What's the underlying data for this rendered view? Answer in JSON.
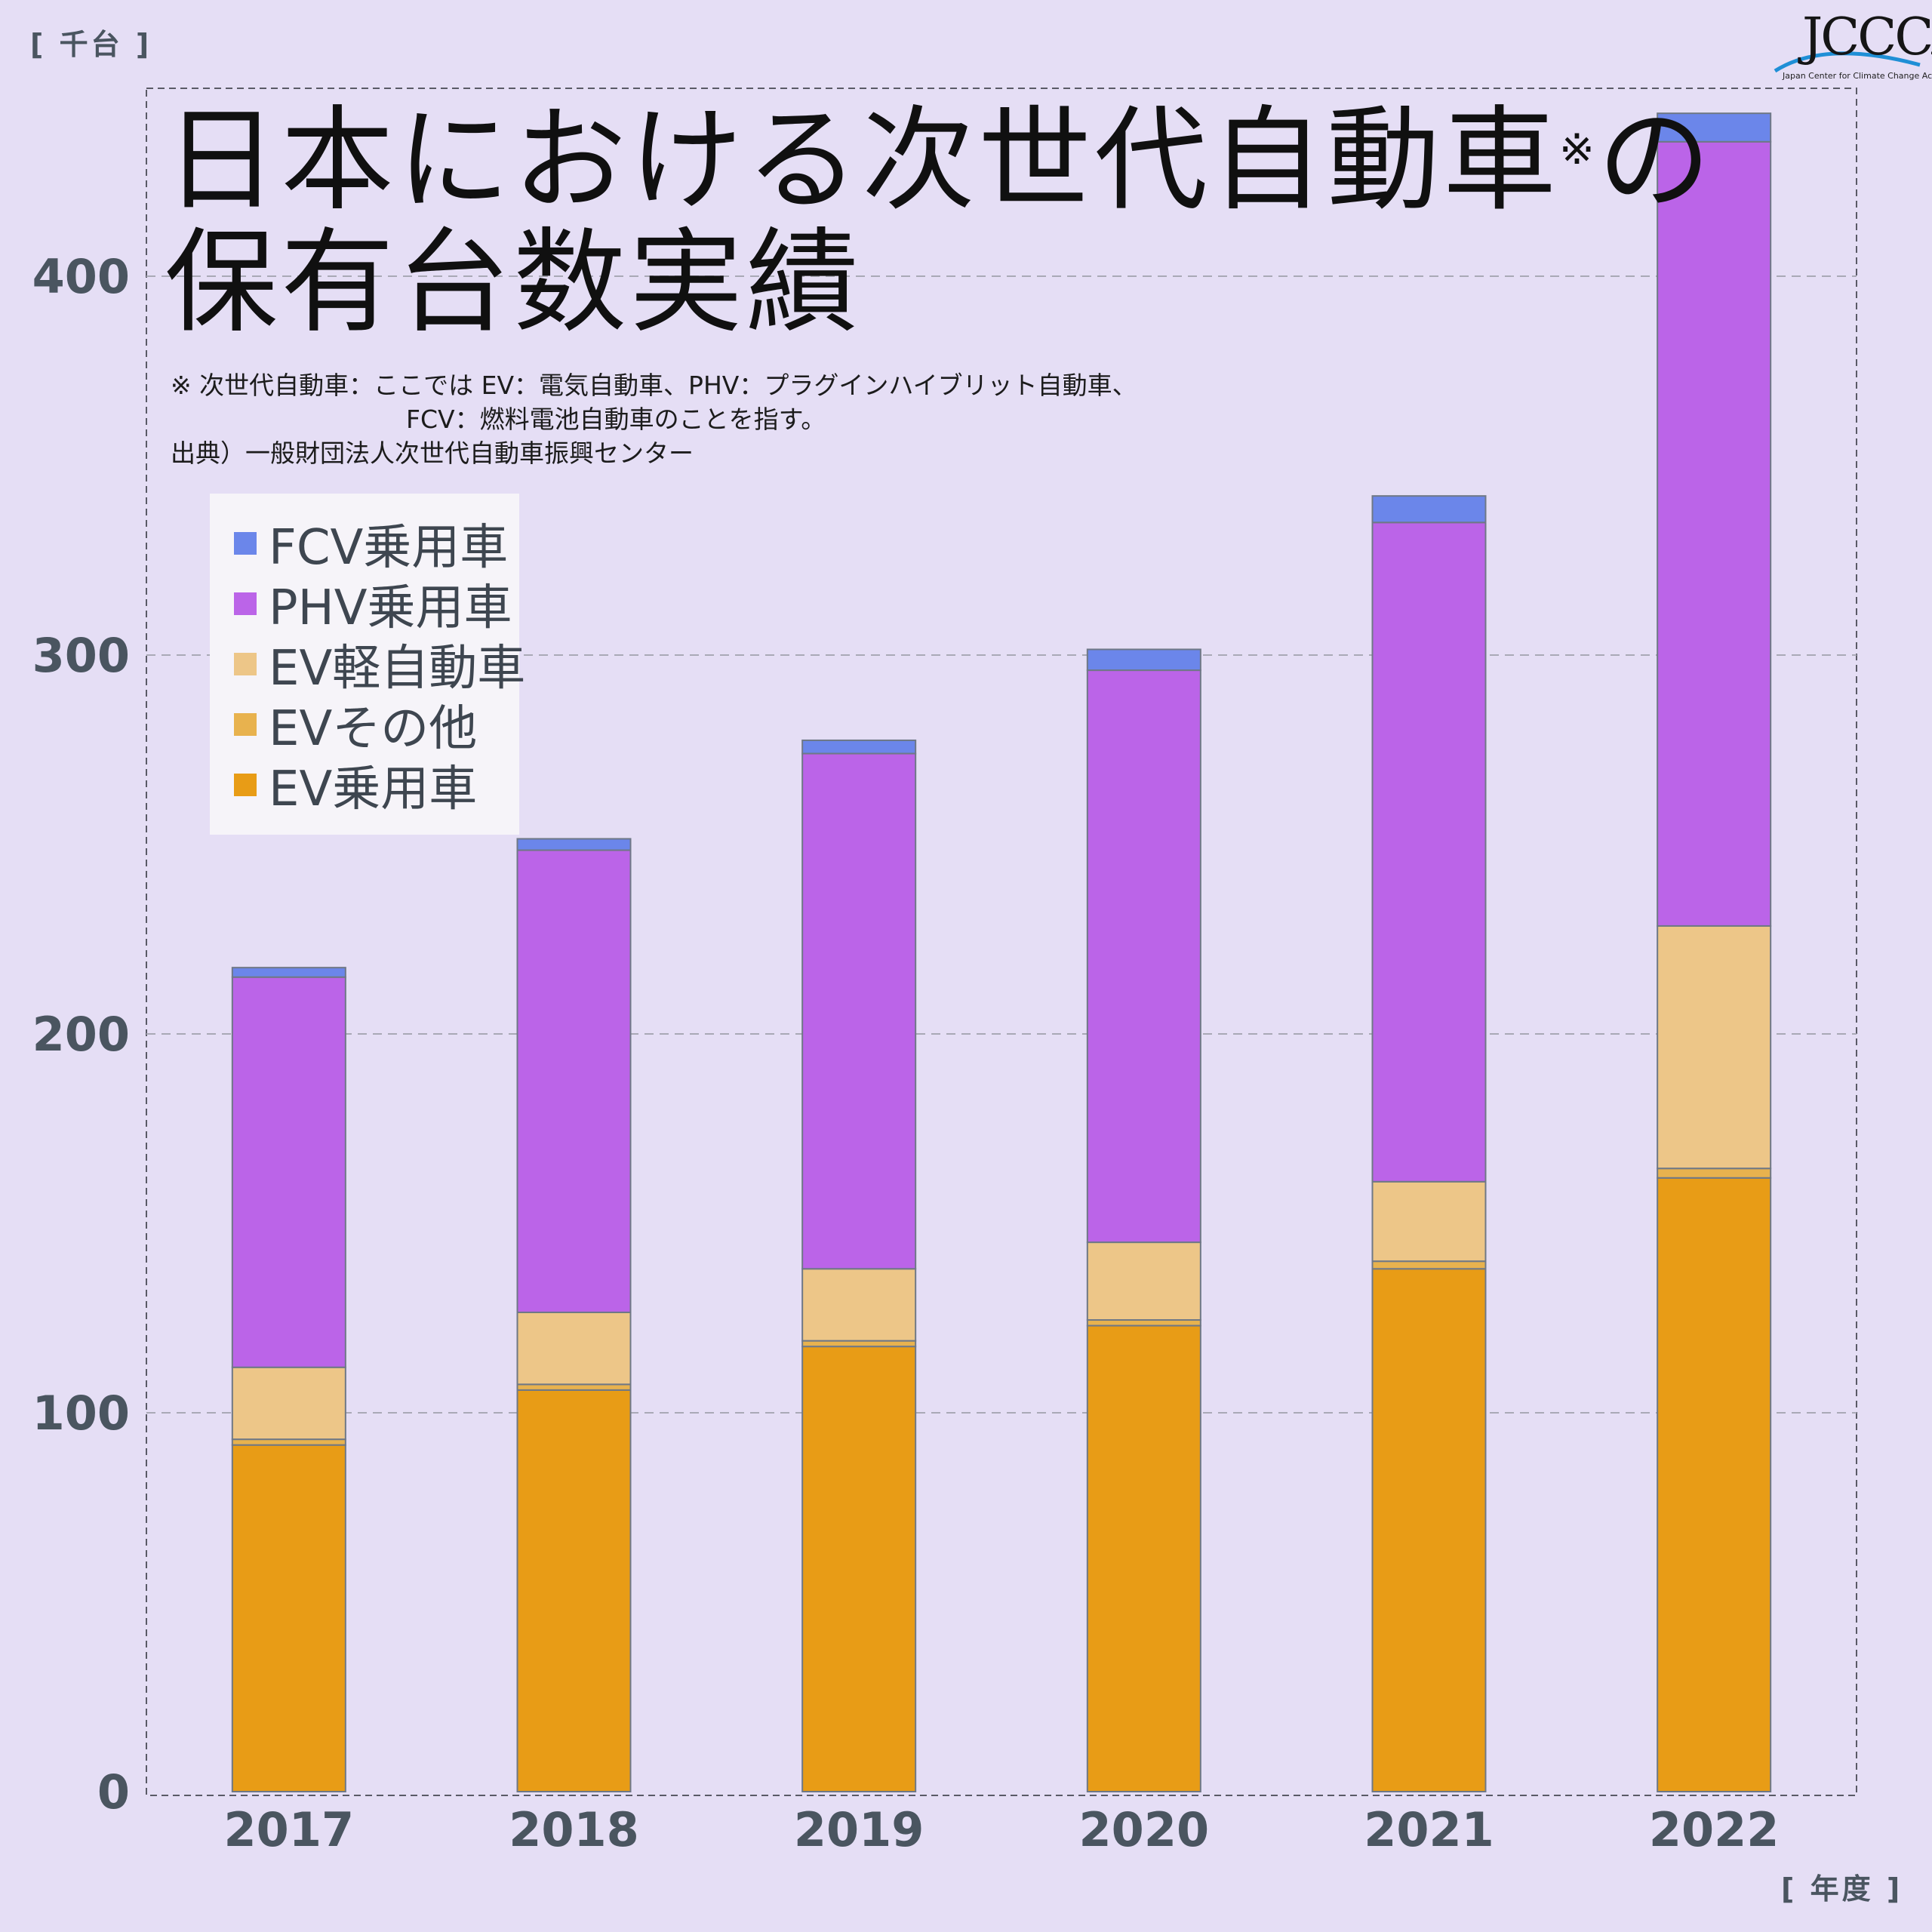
{
  "header": {
    "y_unit": "[ 千台 ]",
    "x_unit": "[ 年度 ]",
    "logo_text": "JCCCA",
    "logo_subtext": "Japan Center for Climate Change Actions"
  },
  "title": {
    "line1": "日本における次世代自動車",
    "mark": "※",
    "line1_end": "の",
    "line2": "保有台数実績"
  },
  "notes": {
    "line1": "※ 次世代自動車：ここでは EV：電気自動車、PHV：プラグインハイブリット自動車、",
    "line2": "FCV：燃料電池自動車のことを指す。",
    "line3": "出典）一般財団法人次世代自動車振興センター"
  },
  "legend": [
    {
      "label": "FCV乗用車",
      "color": "#6b86ea"
    },
    {
      "label": "PHV乗用車",
      "color": "#bb64e8"
    },
    {
      "label": "EV軽自動車",
      "color": "#edc688"
    },
    {
      "label": "EVその他",
      "color": "#e8b24e"
    },
    {
      "label": "EV乗用車",
      "color": "#e89c16"
    }
  ],
  "chart_data": {
    "type": "bar",
    "stacked": true,
    "categories": [
      "2017",
      "2018",
      "2019",
      "2020",
      "2021",
      "2022"
    ],
    "ylim": [
      0,
      450
    ],
    "yticks": [
      0,
      100,
      200,
      300,
      400
    ],
    "grid": true,
    "legend_position": "top-left",
    "ylabel": "[ 千台 ]",
    "xlabel": "[ 年度 ]",
    "series": [
      {
        "name": "EV乗用車",
        "color": "#e89c16",
        "values": [
          91.5,
          106,
          117.5,
          123,
          138,
          162
        ]
      },
      {
        "name": "EVその他",
        "color": "#e8b24e",
        "values": [
          1.5,
          1.5,
          1.5,
          1.5,
          2,
          2.5
        ]
      },
      {
        "name": "EV軽自動車",
        "color": "#edc688",
        "values": [
          19,
          19,
          19,
          20.5,
          21,
          64
        ]
      },
      {
        "name": "PHV乗用車",
        "color": "#bb64e8",
        "values": [
          103,
          122,
          136,
          151,
          174,
          207
        ]
      },
      {
        "name": "FCV乗用車",
        "color": "#6b86ea",
        "values": [
          2.5,
          3,
          3.5,
          5.5,
          7,
          7.5
        ]
      }
    ]
  }
}
